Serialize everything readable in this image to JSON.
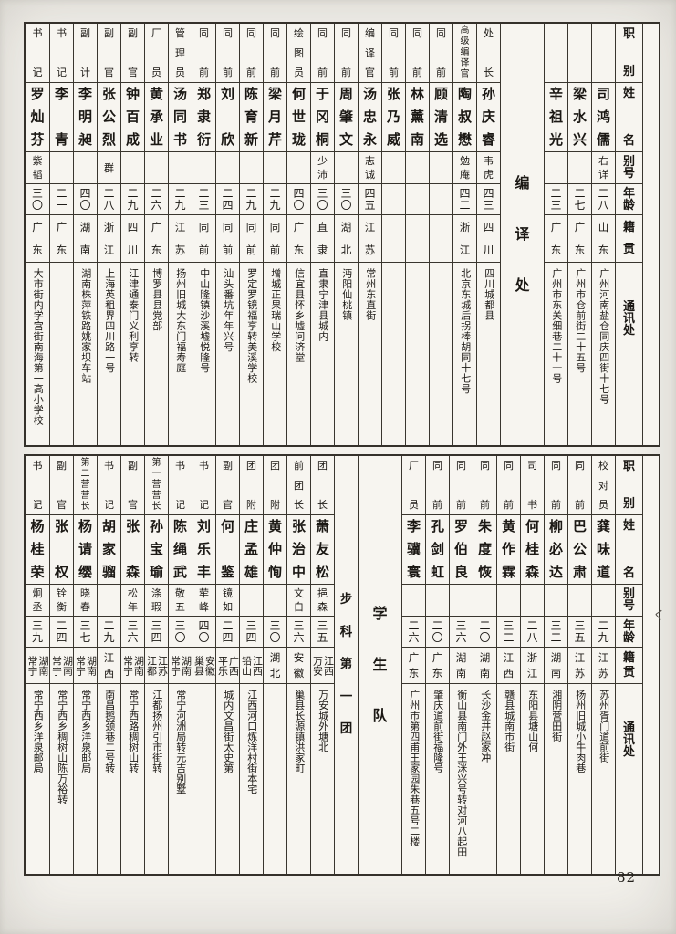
{
  "page": {
    "number": "82",
    "margin_mark": "く",
    "paper_color": "#f3f1ec",
    "line_color": "#35312b",
    "ink_color": "#1b1814"
  },
  "headers": [
    "职别",
    "姓名",
    "别号",
    "年龄",
    "籍贯",
    "通讯处"
  ],
  "tables": [
    {
      "id": "top",
      "columns": [
        {
          "type": "blank"
        },
        {
          "type": "header"
        },
        {
          "type": "person",
          "title": "",
          "name": "司鸿儒",
          "alias": "右详",
          "age": "二八",
          "native": "山东",
          "address": "广州河南盐仓同庆四街十七号"
        },
        {
          "type": "person",
          "title": "",
          "name": "梁水兴",
          "alias": "",
          "age": "二七",
          "native": "广东",
          "address": "广州市仓前街二十五号"
        },
        {
          "type": "person",
          "title": "",
          "name": "辛祖光",
          "alias": "",
          "age": "二三",
          "native": "广东",
          "address": "广州市东关细巷二十一号"
        },
        {
          "type": "label",
          "label": "编译处"
        },
        {
          "type": "person",
          "title": "处长",
          "name": "孙庆睿",
          "alias": "韦虎",
          "age": "四三",
          "native": "四川",
          "address": "四川城都县"
        },
        {
          "type": "person",
          "title": "高级编译官",
          "name": "陶叔懋",
          "alias": "勉庵",
          "age": "四二",
          "native": "浙江",
          "address": "北京东城后拐棒胡同十七号"
        },
        {
          "type": "person",
          "title": "同前",
          "name": "顾清选",
          "alias": "",
          "age": "",
          "native": "",
          "address": ""
        },
        {
          "type": "person",
          "title": "同前",
          "name": "林薰南",
          "alias": "",
          "age": "",
          "native": "",
          "address": ""
        },
        {
          "type": "person",
          "title": "同前",
          "name": "张乃威",
          "alias": "",
          "age": "",
          "native": "",
          "address": ""
        },
        {
          "type": "person",
          "title": "编译官",
          "name": "汤忠永",
          "alias": "志诚",
          "age": "四五",
          "native": "江苏",
          "address": "常州东直街"
        },
        {
          "type": "person",
          "title": "同前",
          "name": "周肇文",
          "alias": "",
          "age": "三〇",
          "native": "湖北",
          "address": "沔阳仙桃镇"
        },
        {
          "type": "person",
          "title": "同前",
          "name": "于冈桐",
          "alias": "少沛",
          "age": "三〇",
          "native": "直隶",
          "address": "直隶宁津县城内"
        },
        {
          "type": "person",
          "title": "绘图员",
          "name": "何世珑",
          "alias": "",
          "age": "四〇",
          "native": "广东",
          "address": "信宜县怀乡墟问济堂"
        },
        {
          "type": "person",
          "title": "同前",
          "name": "梁月芹",
          "alias": "",
          "age": "二九",
          "native": "同前",
          "address": "增城正果瑞山学校"
        },
        {
          "type": "person",
          "title": "同前",
          "name": "陈育新",
          "alias": "",
          "age": "二九",
          "native": "同前",
          "address": "罗定罗镜福亨转美溪学校"
        },
        {
          "type": "person",
          "title": "同前",
          "name": "刘欣",
          "alias": "",
          "age": "二四",
          "native": "同前",
          "address": "汕头番坑年年兴号"
        },
        {
          "type": "person",
          "title": "同前",
          "name": "郑隶衍",
          "alias": "",
          "age": "二三",
          "native": "同前",
          "address": "中山隆镇沙溪墟悦隆号"
        },
        {
          "type": "person",
          "title": "管理员",
          "name": "汤同书",
          "alias": "",
          "age": "二九",
          "native": "江苏",
          "address": "扬州旧城大东门福寿庭"
        },
        {
          "type": "person",
          "title": "厂员",
          "name": "黄承业",
          "alias": "",
          "age": "二六",
          "native": "广东",
          "address": "博罗县县党部"
        },
        {
          "type": "person",
          "title": "副官",
          "name": "钟百成",
          "alias": "",
          "age": "二九",
          "native": "四川",
          "address": "江津通泰门义利亨转"
        },
        {
          "type": "person",
          "title": "副官",
          "name": "张公烈",
          "alias": "群",
          "age": "二八",
          "native": "浙江",
          "address": "上海英租界四川路一号"
        },
        {
          "type": "person",
          "title": "副计",
          "name": "李明昶",
          "alias": "",
          "age": "四〇",
          "native": "湖南",
          "address": "湖南株萍铁路姚家坝车站"
        },
        {
          "type": "person",
          "title": "书记",
          "name": "李青",
          "alias": "",
          "age": "二一",
          "native": "广东",
          "address": ""
        },
        {
          "type": "person",
          "title": "书记",
          "name": "罗灿芬",
          "alias": "紫韬",
          "age": "三〇",
          "native": "广东",
          "address": "大市街内学宫街南海第一高小学校"
        }
      ]
    },
    {
      "id": "bottom",
      "columns": [
        {
          "type": "blank"
        },
        {
          "type": "header"
        },
        {
          "type": "person",
          "title": "校对员",
          "name": "龚味道",
          "alias": "",
          "age": "二九",
          "native": "江苏",
          "address": "苏州胥门道前街"
        },
        {
          "type": "person",
          "title": "同前",
          "name": "巴公肃",
          "alias": "",
          "age": "三五",
          "native": "江苏",
          "address": "扬州旧城小牛肉巷"
        },
        {
          "type": "person",
          "title": "同前",
          "name": "柳必达",
          "alias": "",
          "age": "三二",
          "native": "湖南",
          "address": "湘阴营田街"
        },
        {
          "type": "person",
          "title": "司书",
          "name": "何桂森",
          "alias": "",
          "age": "二八",
          "native": "浙江",
          "address": "东阳县塘山何"
        },
        {
          "type": "person",
          "title": "同前",
          "name": "黄作霖",
          "alias": "",
          "age": "三二",
          "native": "江西",
          "address": "赣县城南市街"
        },
        {
          "type": "person",
          "title": "同前",
          "name": "朱度恢",
          "alias": "",
          "age": "二〇",
          "native": "湖南",
          "address": "长沙金井赵家冲"
        },
        {
          "type": "person",
          "title": "同前",
          "name": "罗伯良",
          "alias": "",
          "age": "三六",
          "native": "湖南",
          "address": "衡山县南门外王洣兴号转对河八起田"
        },
        {
          "type": "person",
          "title": "同前",
          "name": "孔剑虹",
          "alias": "",
          "age": "二〇",
          "native": "广东",
          "address": "肇庆道前街福隆号"
        },
        {
          "type": "person",
          "title": "厂员",
          "name": "李骥寰",
          "alias": "",
          "age": "二六",
          "native": "广东",
          "address": "广州市第四甫王家园朱巷五号二楼"
        },
        {
          "type": "label",
          "label": "学生队"
        },
        {
          "type": "label",
          "label": "步科第一团"
        },
        {
          "type": "person",
          "title": "团长",
          "name": "萧友松",
          "alias": "挹森",
          "age": "三五",
          "native": "江西\n万安",
          "address": "万安城外塘北"
        },
        {
          "type": "person",
          "title": "前团长",
          "name": "张治中",
          "alias": "文白",
          "age": "三六",
          "native": "安徽",
          "address": "巢县长源镇洪家町"
        },
        {
          "type": "person",
          "title": "团附",
          "name": "黄仲恂",
          "alias": "",
          "age": "三〇",
          "native": "湖北",
          "address": ""
        },
        {
          "type": "person",
          "title": "团附",
          "name": "庄孟雄",
          "alias": "",
          "age": "三四",
          "native": "江西\n铅山",
          "address": "江西河口炼洋村街本宅"
        },
        {
          "type": "person",
          "title": "副官",
          "name": "何鉴",
          "alias": "镜如",
          "age": "二四",
          "native": "广西\n平乐",
          "address": "城内文昌街太史第"
        },
        {
          "type": "person",
          "title": "书记",
          "name": "刘乐丰",
          "alias": "荦峰",
          "age": "四〇",
          "native": "安徽\n巢县",
          "address": ""
        },
        {
          "type": "person",
          "title": "书记",
          "name": "陈绳武",
          "alias": "敬五",
          "age": "三〇",
          "native": "湖南\n常宁",
          "address": "常宁河洲局转元吉别墅"
        },
        {
          "type": "person",
          "title": "第一营营长",
          "name": "孙宝瑜",
          "alias": "涤瑕",
          "age": "三四",
          "native": "江苏\n江都",
          "address": "江都扬州引市街转"
        },
        {
          "type": "person",
          "title": "副官",
          "name": "张森",
          "alias": "松年",
          "age": "三六",
          "native": "湖南\n常宁",
          "address": "常宁西路稠树山转"
        },
        {
          "type": "person",
          "title": "书记",
          "name": "胡家骝",
          "alias": "",
          "age": "二九",
          "native": "江西",
          "address": "南昌鹅颈巷二号转"
        },
        {
          "type": "person",
          "title": "第二营营长",
          "name": "杨请缨",
          "alias": "晓春",
          "age": "三七",
          "native": "湖南\n常宁",
          "address": "常宁西乡洋泉邮局"
        },
        {
          "type": "person",
          "title": "副官",
          "name": "张权",
          "alias": "铨衡",
          "age": "二四",
          "native": "湖南\n常宁",
          "address": "常宁西乡稠树山陈万裕转"
        },
        {
          "type": "person",
          "title": "书记",
          "name": "杨桂荣",
          "alias": "炯丞",
          "age": "三九",
          "native": "湖南\n常宁",
          "address": "常宁西乡洋泉邮局"
        }
      ]
    }
  ]
}
